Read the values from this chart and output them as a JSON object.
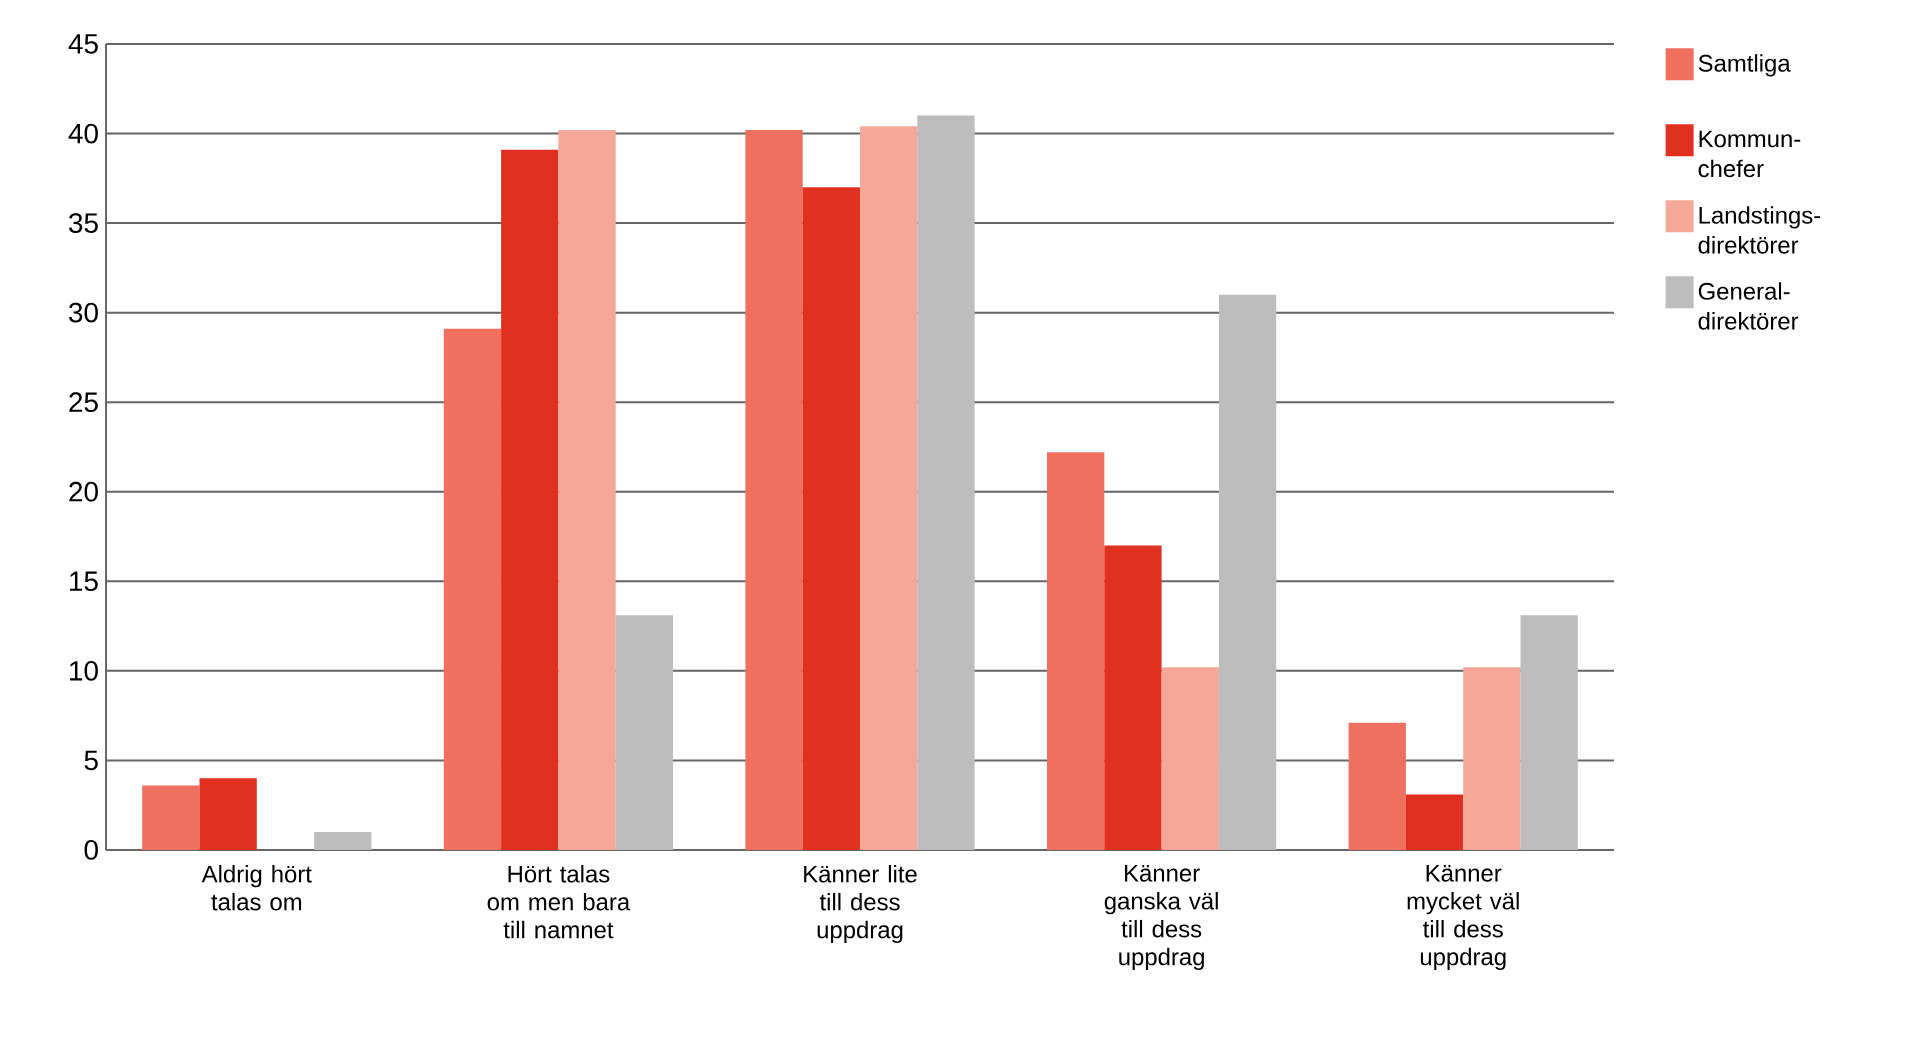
{
  "chart_data": {
    "type": "bar",
    "categories": [
      "Aldrig hört talas om",
      "Hört talas om men bara till namnet",
      "Känner lite till dess uppdrag",
      "Känner ganska väl till dess uppdrag",
      "Känner mycket väl till dess uppdrag"
    ],
    "series": [
      {
        "name": "Samtliga",
        "color": "#f07060",
        "values": [
          3.6,
          29.1,
          40.2,
          22.2,
          7.1
        ]
      },
      {
        "name": "Kommun-chefer",
        "color": "#e03020",
        "values": [
          4.0,
          39.1,
          37.0,
          17.0,
          3.1
        ]
      },
      {
        "name": "Landstings-direktörer",
        "color": "#f6a898",
        "values": [
          0,
          40.2,
          40.4,
          10.2,
          10.2
        ]
      },
      {
        "name": "General-direktörer",
        "color": "#bdbdbd",
        "values": [
          1.0,
          13.1,
          41.0,
          31.0,
          13.1
        ]
      }
    ],
    "ylim": [
      0,
      45
    ],
    "yticks": [
      0,
      5,
      10,
      15,
      20,
      25,
      30,
      35,
      40,
      45
    ],
    "grid": "y",
    "legend": "right"
  }
}
